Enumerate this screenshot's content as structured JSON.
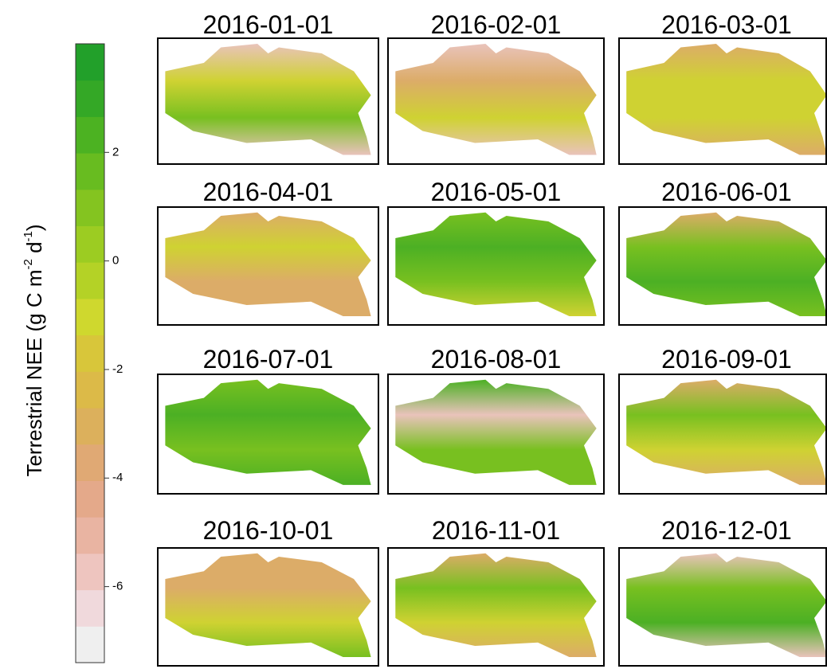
{
  "colorbar": {
    "label_parts": [
      "Terrestrial NEE (g C m",
      "-2",
      " d",
      "-1",
      ")"
    ],
    "ylim": [
      -7.4,
      4
    ],
    "yticks": [
      2,
      0,
      -2,
      -4,
      -6
    ],
    "colors": [
      "#efefef",
      "#f0d9dc",
      "#eec5bf",
      "#e9b4a2",
      "#e4a98a",
      "#e0a974",
      "#dcb05c",
      "#dcba48",
      "#d8c63a",
      "#cfd82e",
      "#b4d226",
      "#9ccc22",
      "#84c420",
      "#68bc20",
      "#4cb222",
      "#34a826",
      "#22a02a"
    ]
  },
  "maps": [
    {
      "title": "2016-01-01"
    },
    {
      "title": "2016-02-01"
    },
    {
      "title": "2016-03-01"
    },
    {
      "title": "2016-04-01"
    },
    {
      "title": "2016-05-01"
    },
    {
      "title": "2016-06-01"
    },
    {
      "title": "2016-07-01"
    },
    {
      "title": "2016-08-01"
    },
    {
      "title": "2016-09-01"
    },
    {
      "title": "2016-10-01"
    },
    {
      "title": "2016-11-01"
    },
    {
      "title": "2016-12-01"
    }
  ]
}
